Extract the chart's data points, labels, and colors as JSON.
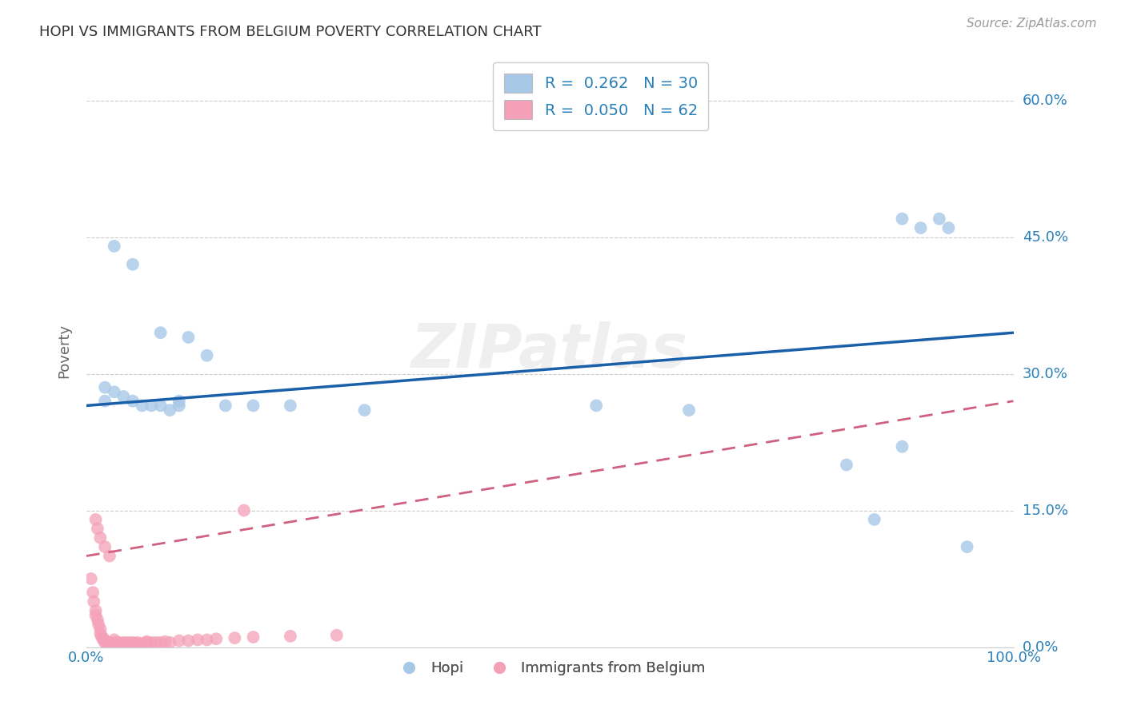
{
  "title": "HOPI VS IMMIGRANTS FROM BELGIUM POVERTY CORRELATION CHART",
  "source": "Source: ZipAtlas.com",
  "ylabel": "Poverty",
  "yticks": [
    0.0,
    0.15,
    0.3,
    0.45,
    0.6
  ],
  "ytick_labels": [
    "0.0%",
    "15.0%",
    "30.0%",
    "45.0%",
    "60.0%"
  ],
  "xlim": [
    0.0,
    1.0
  ],
  "ylim": [
    0.0,
    0.65
  ],
  "watermark": "ZIPatlas",
  "legend_blue_label": "R =  0.262   N = 30",
  "legend_pink_label": "R =  0.050   N = 62",
  "legend_bottom_blue": "Hopi",
  "legend_bottom_pink": "Immigrants from Belgium",
  "hopi_color": "#a8c8e8",
  "belgium_color": "#f4a0b8",
  "hopi_line_color": "#1a5faa",
  "belgium_line_color": "#d06080",
  "hopi_R": 0.262,
  "belgium_R": 0.05,
  "hopi_x": [
    0.02,
    0.02,
    0.03,
    0.04,
    0.05,
    0.06,
    0.07,
    0.08,
    0.09,
    0.1,
    0.11,
    0.13,
    0.15,
    0.18,
    0.22,
    0.3,
    0.55,
    0.65,
    0.82,
    0.85,
    0.88,
    0.9,
    0.92,
    0.93,
    0.03,
    0.05,
    0.08,
    0.1,
    0.88,
    0.95
  ],
  "hopi_y": [
    0.285,
    0.27,
    0.28,
    0.275,
    0.27,
    0.265,
    0.265,
    0.265,
    0.26,
    0.265,
    0.34,
    0.32,
    0.265,
    0.265,
    0.265,
    0.26,
    0.265,
    0.26,
    0.2,
    0.14,
    0.47,
    0.46,
    0.47,
    0.46,
    0.44,
    0.42,
    0.345,
    0.27,
    0.22,
    0.11
  ],
  "belgium_x": [
    0.005,
    0.007,
    0.008,
    0.01,
    0.01,
    0.012,
    0.013,
    0.015,
    0.015,
    0.016,
    0.018,
    0.018,
    0.02,
    0.02,
    0.022,
    0.022,
    0.025,
    0.025,
    0.027,
    0.028,
    0.03,
    0.03,
    0.032,
    0.033,
    0.035,
    0.035,
    0.038,
    0.04,
    0.04,
    0.042,
    0.045,
    0.045,
    0.048,
    0.05,
    0.05,
    0.052,
    0.055,
    0.055,
    0.058,
    0.06,
    0.065,
    0.065,
    0.07,
    0.075,
    0.08,
    0.085,
    0.09,
    0.1,
    0.11,
    0.12,
    0.13,
    0.14,
    0.16,
    0.18,
    0.22,
    0.27,
    0.01,
    0.012,
    0.015,
    0.17,
    0.02,
    0.025
  ],
  "belgium_y": [
    0.075,
    0.06,
    0.05,
    0.04,
    0.035,
    0.03,
    0.025,
    0.02,
    0.015,
    0.012,
    0.01,
    0.008,
    0.007,
    0.005,
    0.005,
    0.004,
    0.003,
    0.005,
    0.004,
    0.003,
    0.003,
    0.008,
    0.005,
    0.004,
    0.003,
    0.005,
    0.004,
    0.003,
    0.005,
    0.004,
    0.003,
    0.005,
    0.004,
    0.003,
    0.005,
    0.004,
    0.003,
    0.005,
    0.004,
    0.003,
    0.005,
    0.006,
    0.005,
    0.005,
    0.005,
    0.006,
    0.005,
    0.007,
    0.007,
    0.008,
    0.008,
    0.009,
    0.01,
    0.011,
    0.012,
    0.013,
    0.14,
    0.13,
    0.12,
    0.15,
    0.11,
    0.1
  ]
}
